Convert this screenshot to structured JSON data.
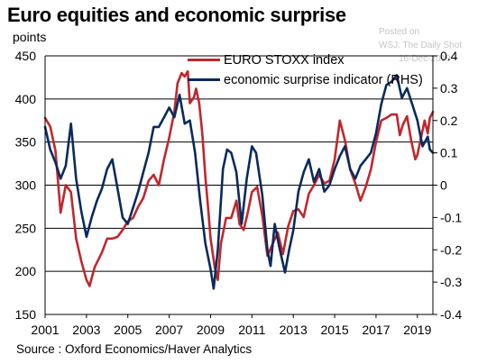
{
  "title": "Euro equities and economic surprise",
  "unit_label": "points",
  "source": "Source : Oxford Economics/Haver Analytics",
  "watermark": {
    "line1": "Posted on",
    "line2": "WSJ: The Daily Shot",
    "line3": "16-Dec-2019"
  },
  "colors": {
    "euro_stoxx": "#c0272d",
    "surprise": "#0a2a5c",
    "grid": "#000000"
  },
  "chart_data": {
    "type": "line",
    "x_ticks": [
      "2001",
      "2003",
      "2005",
      "2007",
      "2009",
      "2011",
      "2013",
      "2015",
      "2017",
      "2019"
    ],
    "x_range": [
      2001.0,
      2019.75
    ],
    "left_axis": {
      "ticks": [
        "450",
        "400",
        "350",
        "300",
        "250",
        "200",
        "150"
      ],
      "ylim": [
        150,
        450
      ]
    },
    "right_axis": {
      "ticks": [
        "0.4",
        "0.3",
        "0.2",
        "0.1",
        "0",
        "-0.1",
        "-0.2",
        "-0.3",
        "-0.4"
      ],
      "ylim": [
        -0.4,
        0.4
      ]
    },
    "grid": "horizontal",
    "legend_placement": "top-center",
    "series": [
      {
        "name": "EURO STOXX index",
        "axis": "left",
        "points": [
          [
            2001.0,
            378
          ],
          [
            2001.25,
            368
          ],
          [
            2001.5,
            340
          ],
          [
            2001.75,
            268
          ],
          [
            2002.0,
            300
          ],
          [
            2002.25,
            292
          ],
          [
            2002.5,
            238
          ],
          [
            2002.75,
            212
          ],
          [
            2003.0,
            190
          ],
          [
            2003.15,
            183
          ],
          [
            2003.4,
            205
          ],
          [
            2003.75,
            222
          ],
          [
            2004.0,
            238
          ],
          [
            2004.25,
            238
          ],
          [
            2004.5,
            240
          ],
          [
            2004.75,
            248
          ],
          [
            2005.0,
            258
          ],
          [
            2005.25,
            262
          ],
          [
            2005.5,
            275
          ],
          [
            2005.75,
            285
          ],
          [
            2006.0,
            305
          ],
          [
            2006.25,
            312
          ],
          [
            2006.5,
            300
          ],
          [
            2006.75,
            330
          ],
          [
            2007.0,
            355
          ],
          [
            2007.25,
            385
          ],
          [
            2007.4,
            418
          ],
          [
            2007.6,
            430
          ],
          [
            2007.75,
            426
          ],
          [
            2007.9,
            432
          ],
          [
            2008.0,
            395
          ],
          [
            2008.2,
            402
          ],
          [
            2008.3,
            412
          ],
          [
            2008.45,
            395
          ],
          [
            2008.6,
            360
          ],
          [
            2008.75,
            310
          ],
          [
            2008.9,
            268
          ],
          [
            2009.0,
            238
          ],
          [
            2009.2,
            205
          ],
          [
            2009.35,
            190
          ],
          [
            2009.5,
            232
          ],
          [
            2009.75,
            262
          ],
          [
            2010.0,
            262
          ],
          [
            2010.25,
            282
          ],
          [
            2010.4,
            255
          ],
          [
            2010.6,
            248
          ],
          [
            2010.8,
            268
          ],
          [
            2011.0,
            292
          ],
          [
            2011.25,
            298
          ],
          [
            2011.5,
            265
          ],
          [
            2011.75,
            218
          ],
          [
            2012.0,
            232
          ],
          [
            2012.25,
            245
          ],
          [
            2012.5,
            220
          ],
          [
            2012.75,
            252
          ],
          [
            2013.0,
            270
          ],
          [
            2013.25,
            272
          ],
          [
            2013.5,
            263
          ],
          [
            2013.75,
            290
          ],
          [
            2014.0,
            300
          ],
          [
            2014.25,
            312
          ],
          [
            2014.5,
            302
          ],
          [
            2014.75,
            305
          ],
          [
            2015.0,
            330
          ],
          [
            2015.25,
            375
          ],
          [
            2015.5,
            352
          ],
          [
            2015.75,
            318
          ],
          [
            2016.0,
            302
          ],
          [
            2016.25,
            282
          ],
          [
            2016.5,
            298
          ],
          [
            2016.75,
            318
          ],
          [
            2017.0,
            350
          ],
          [
            2017.25,
            375
          ],
          [
            2017.5,
            378
          ],
          [
            2017.75,
            382
          ],
          [
            2018.0,
            382
          ],
          [
            2018.15,
            358
          ],
          [
            2018.3,
            370
          ],
          [
            2018.5,
            380
          ],
          [
            2018.7,
            352
          ],
          [
            2018.9,
            330
          ],
          [
            2019.0,
            335
          ],
          [
            2019.2,
            358
          ],
          [
            2019.35,
            375
          ],
          [
            2019.5,
            360
          ],
          [
            2019.6,
            378
          ],
          [
            2019.75,
            385
          ]
        ]
      },
      {
        "name": "economic surprise indicator (RHS)",
        "axis": "right",
        "points": [
          [
            2001.0,
            0.18
          ],
          [
            2001.25,
            0.11
          ],
          [
            2001.5,
            0.07
          ],
          [
            2001.75,
            0.02
          ],
          [
            2002.0,
            0.06
          ],
          [
            2002.25,
            0.19
          ],
          [
            2002.5,
            0.02
          ],
          [
            2002.75,
            -0.08
          ],
          [
            2003.0,
            -0.16
          ],
          [
            2003.25,
            -0.1
          ],
          [
            2003.5,
            -0.05
          ],
          [
            2003.75,
            -0.01
          ],
          [
            2004.0,
            0.05
          ],
          [
            2004.25,
            0.08
          ],
          [
            2004.5,
            -0.01
          ],
          [
            2004.75,
            -0.1
          ],
          [
            2005.0,
            -0.12
          ],
          [
            2005.25,
            -0.07
          ],
          [
            2005.5,
            -0.02
          ],
          [
            2005.75,
            0.04
          ],
          [
            2006.0,
            0.1
          ],
          [
            2006.25,
            0.18
          ],
          [
            2006.5,
            0.18
          ],
          [
            2006.75,
            0.21
          ],
          [
            2007.0,
            0.24
          ],
          [
            2007.25,
            0.21
          ],
          [
            2007.5,
            0.28
          ],
          [
            2007.75,
            0.19
          ],
          [
            2008.0,
            0.2
          ],
          [
            2008.25,
            0.1
          ],
          [
            2008.5,
            -0.05
          ],
          [
            2008.75,
            -0.18
          ],
          [
            2009.0,
            -0.26
          ],
          [
            2009.15,
            -0.32
          ],
          [
            2009.35,
            -0.2
          ],
          [
            2009.6,
            0.05
          ],
          [
            2009.8,
            0.11
          ],
          [
            2010.0,
            0.1
          ],
          [
            2010.25,
            0.04
          ],
          [
            2010.5,
            -0.12
          ],
          [
            2010.75,
            0.02
          ],
          [
            2011.0,
            0.12
          ],
          [
            2011.2,
            0.1
          ],
          [
            2011.5,
            -0.03
          ],
          [
            2011.75,
            -0.2
          ],
          [
            2011.9,
            -0.25
          ],
          [
            2012.1,
            -0.12
          ],
          [
            2012.35,
            -0.2
          ],
          [
            2012.6,
            -0.27
          ],
          [
            2012.8,
            -0.2
          ],
          [
            2013.0,
            -0.14
          ],
          [
            2013.25,
            -0.02
          ],
          [
            2013.5,
            0.04
          ],
          [
            2013.75,
            0.08
          ],
          [
            2014.0,
            0.01
          ],
          [
            2014.25,
            0.05
          ],
          [
            2014.5,
            -0.02
          ],
          [
            2014.75,
            0.0
          ],
          [
            2015.0,
            0.05
          ],
          [
            2015.25,
            0.09
          ],
          [
            2015.5,
            0.12
          ],
          [
            2015.75,
            0.05
          ],
          [
            2016.0,
            0.02
          ],
          [
            2016.25,
            0.06
          ],
          [
            2016.5,
            0.08
          ],
          [
            2016.75,
            0.1
          ],
          [
            2017.0,
            0.16
          ],
          [
            2017.25,
            0.25
          ],
          [
            2017.5,
            0.31
          ],
          [
            2017.75,
            0.32
          ],
          [
            2018.0,
            0.34
          ],
          [
            2018.25,
            0.27
          ],
          [
            2018.5,
            0.3
          ],
          [
            2018.75,
            0.25
          ],
          [
            2019.0,
            0.2
          ],
          [
            2019.25,
            0.12
          ],
          [
            2019.5,
            0.15
          ],
          [
            2019.6,
            0.11
          ],
          [
            2019.75,
            0.1
          ]
        ]
      }
    ]
  }
}
